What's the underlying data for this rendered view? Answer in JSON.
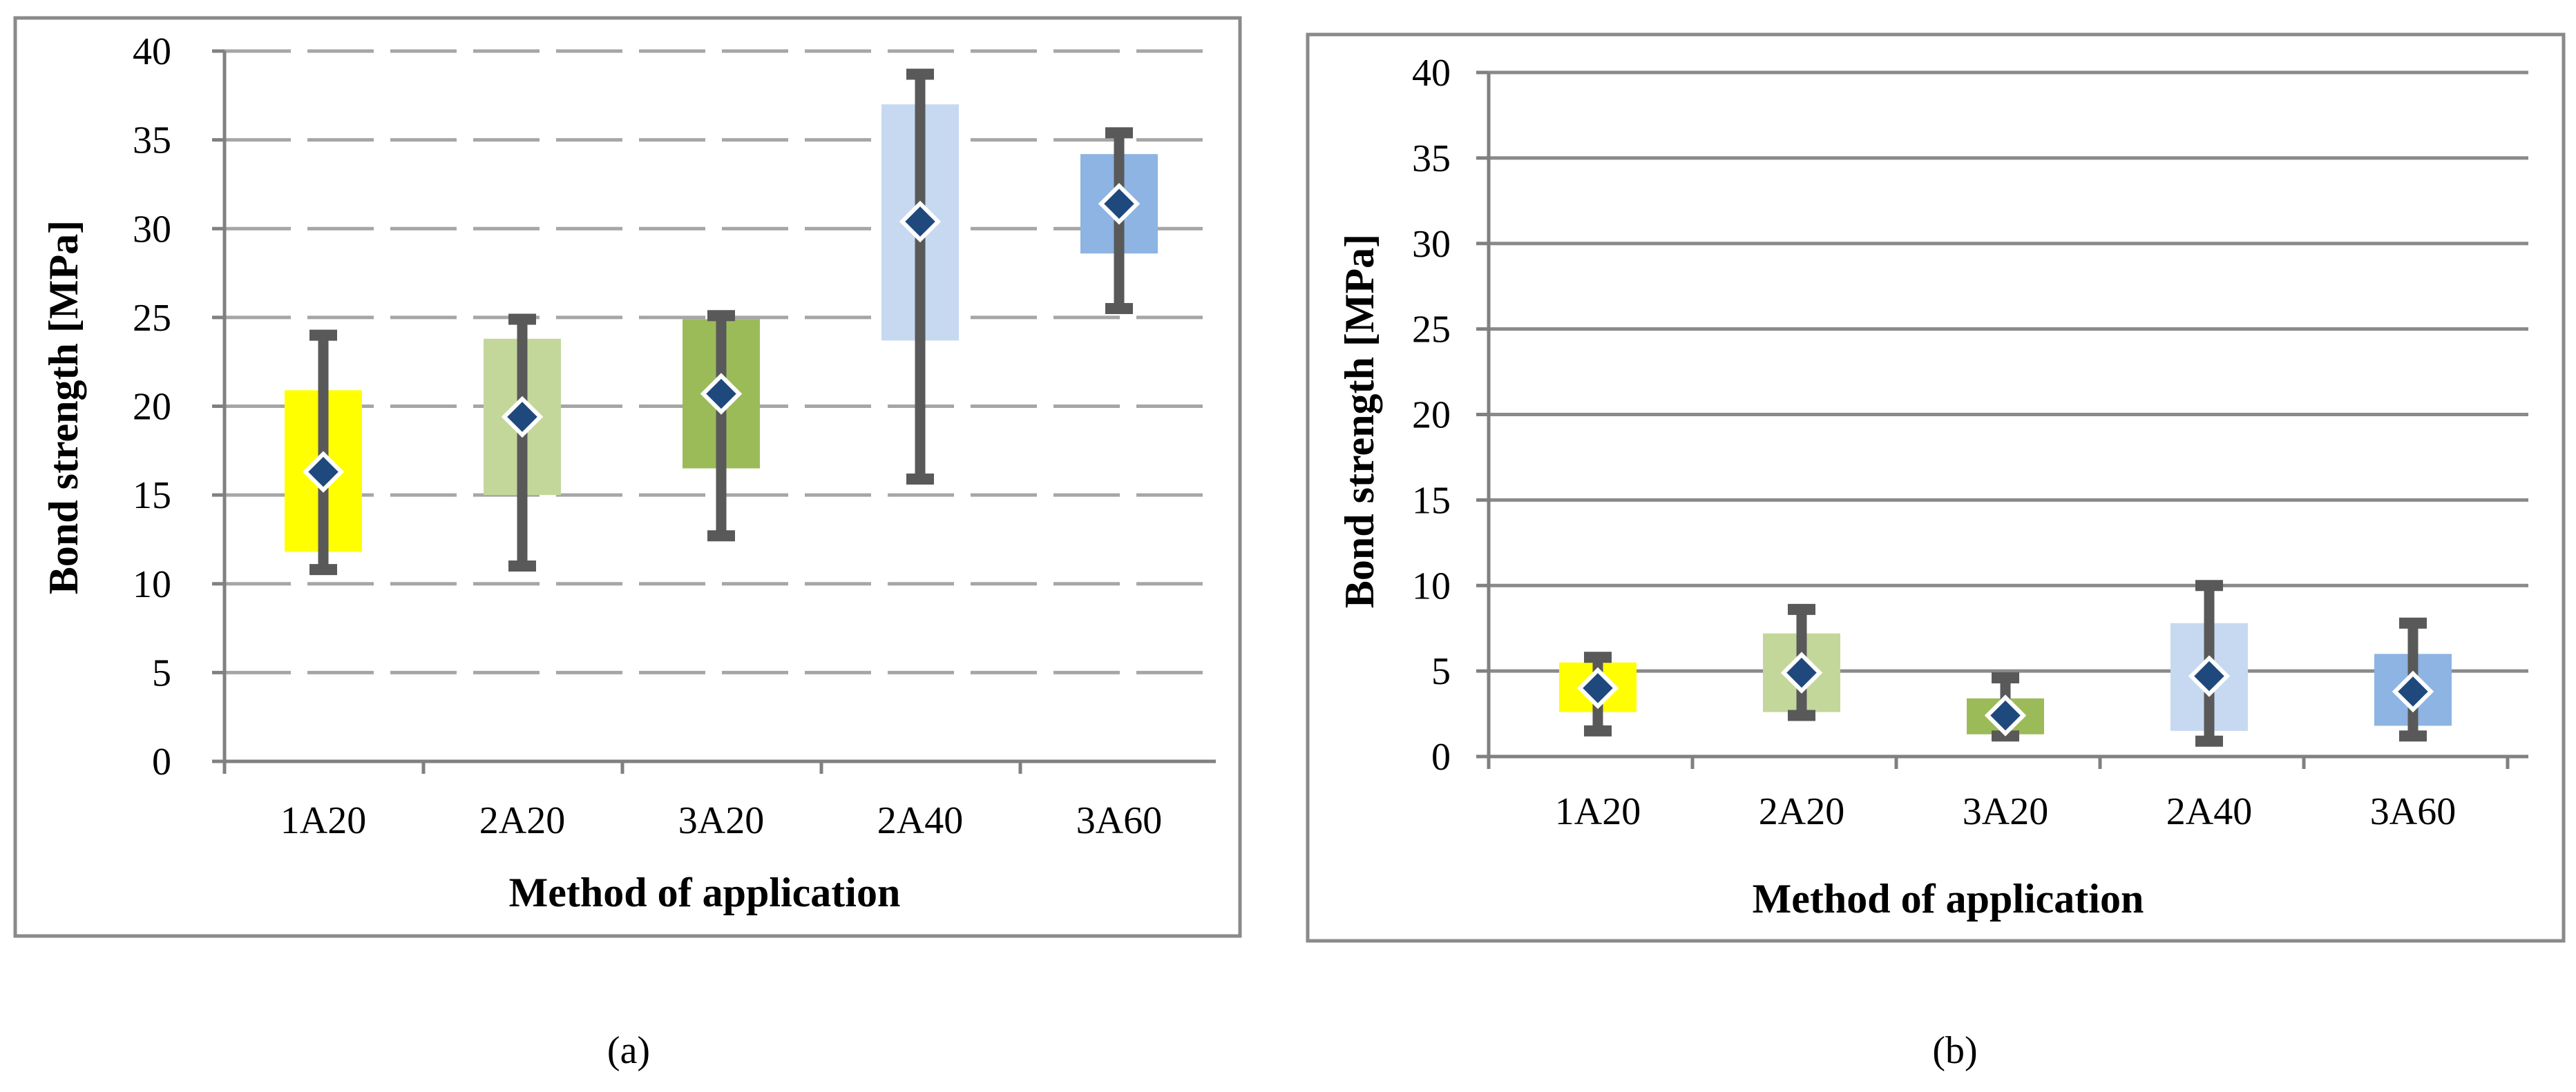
{
  "captions": [
    "(a)",
    "(b)"
  ],
  "colors": {
    "1A20": "#ffff00",
    "2A20": "#c4d79b",
    "3A20": "#9bbb59",
    "2A40": "#c6d9f1",
    "3A60": "#8db4e2",
    "whisker": "#595959",
    "marker": "#1f497d",
    "grid_a": "#a6a6a6",
    "grid_b": "#8a8a8a"
  },
  "chart_data": [
    {
      "panel": "(a)",
      "type": "box",
      "xlabel": "Method of application",
      "ylabel": "Bond strength [MPa]",
      "ylim": [
        0,
        40
      ],
      "yticks": [
        0,
        5,
        10,
        15,
        20,
        25,
        30,
        35,
        40
      ],
      "categories": [
        "1A20",
        "2A20",
        "3A20",
        "2A40",
        "3A60"
      ],
      "box_low": [
        11.8,
        15.0,
        16.5,
        23.7,
        28.6
      ],
      "box_high": [
        20.9,
        23.8,
        24.9,
        37.0,
        34.2
      ],
      "whisker_low": [
        10.8,
        11.0,
        12.7,
        15.9,
        25.5
      ],
      "whisker_high": [
        24.0,
        24.9,
        25.1,
        38.7,
        35.4
      ],
      "mean": [
        16.3,
        19.4,
        20.7,
        30.4,
        31.4
      ]
    },
    {
      "panel": "(b)",
      "type": "box",
      "xlabel": "Method of application",
      "ylabel": "Bond strength [MPa]",
      "ylim": [
        0,
        40
      ],
      "yticks": [
        0,
        5,
        10,
        15,
        20,
        25,
        30,
        35,
        40
      ],
      "categories": [
        "1A20",
        "2A20",
        "3A20",
        "2A40",
        "3A60"
      ],
      "box_low": [
        2.6,
        2.6,
        1.3,
        1.5,
        1.8
      ],
      "box_high": [
        5.5,
        7.2,
        3.4,
        7.8,
        6.0
      ],
      "whisker_low": [
        1.5,
        2.4,
        1.2,
        0.9,
        1.2
      ],
      "whisker_high": [
        5.8,
        8.6,
        4.6,
        10.0,
        7.8
      ],
      "mean": [
        4.0,
        4.9,
        2.4,
        4.7,
        3.8
      ]
    }
  ]
}
